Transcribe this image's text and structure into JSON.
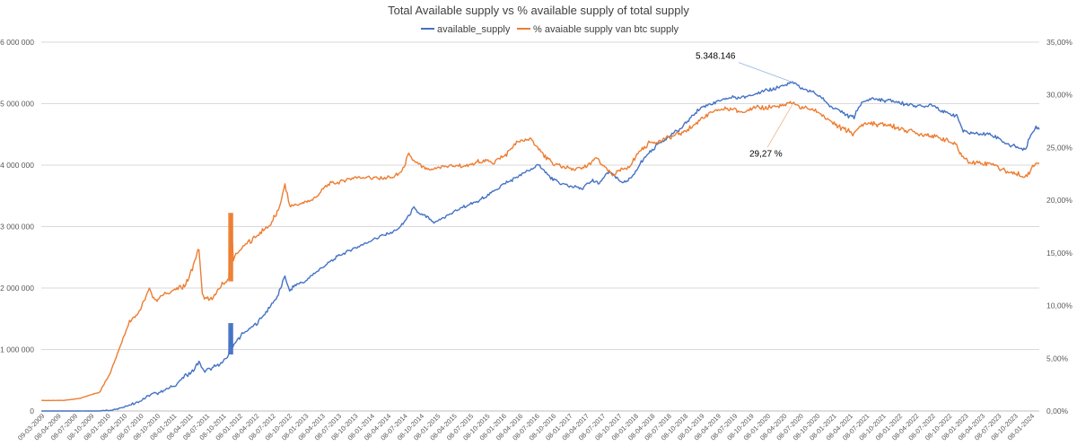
{
  "chart_data": {
    "type": "line",
    "title": "Total Available supply vs % available supply of total supply",
    "legend_position": "top-center",
    "grid": true,
    "series": [
      {
        "name": "available_supply",
        "color": "#4472c4",
        "axis": "left"
      },
      {
        "name": "% avaiable supply van btc supply",
        "color": "#ed7d31",
        "axis": "right"
      }
    ],
    "y_left": {
      "ylim": [
        0,
        6000000
      ],
      "ticks": [
        "0",
        "1 000 000",
        "2 000 000",
        "3 000 000",
        "4 000 000",
        "5 000 000",
        "6 000 000"
      ]
    },
    "y_right": {
      "ylim": [
        0,
        35
      ],
      "ticks": [
        "0,00%",
        "5,00%",
        "10,00%",
        "15,00%",
        "20,00%",
        "25,00%",
        "30,00%",
        "35,00%"
      ]
    },
    "x_start": 2009.167,
    "x_end": 2024.25,
    "x_tick_labels": [
      "09-03-2009",
      "08-04-2009",
      "08-07-2009",
      "08-10-2009",
      "08-01-2010",
      "08-04-2010",
      "08-07-2010",
      "08-10-2010",
      "08-01-2011",
      "08-04-2011",
      "08-07-2011",
      "08-10-2011",
      "08-01-2012",
      "08-04-2012",
      "08-07-2012",
      "08-10-2012",
      "08-01-2013",
      "08-04-2013",
      "08-07-2013",
      "08-10-2013",
      "08-01-2014",
      "08-04-2014",
      "08-07-2014",
      "08-10-2014",
      "08-01-2015",
      "08-04-2015",
      "08-07-2015",
      "08-10-2015",
      "08-01-2016",
      "08-04-2016",
      "08-07-2016",
      "08-10-2016",
      "08-01-2017",
      "08-04-2017",
      "08-07-2017",
      "08-10-2017",
      "08-01-2018",
      "08-04-2018",
      "08-07-2018",
      "08-10-2018",
      "08-01-2019",
      "08-04-2019",
      "08-07-2019",
      "08-10-2019",
      "08-01-2020",
      "08-04-2020",
      "08-07-2020",
      "08-10-2020",
      "08-01-2021",
      "08-04-2021",
      "08-07-2021",
      "08-10-2021",
      "08-01-2022",
      "08-04-2022",
      "08-07-2022",
      "08-10-2022",
      "08-01-2023",
      "08-04-2023",
      "08-07-2023",
      "08-10-2023",
      "08-01-2024"
    ],
    "available_supply_points": [
      [
        2009.17,
        0
      ],
      [
        2009.5,
        0
      ],
      [
        2009.8,
        0
      ],
      [
        2010.0,
        0
      ],
      [
        2010.2,
        10000
      ],
      [
        2010.4,
        60000
      ],
      [
        2010.6,
        140000
      ],
      [
        2010.8,
        250000
      ],
      [
        2011.0,
        330000
      ],
      [
        2011.2,
        420000
      ],
      [
        2011.35,
        580000
      ],
      [
        2011.45,
        640000
      ],
      [
        2011.55,
        800000
      ],
      [
        2011.62,
        650000
      ],
      [
        2011.75,
        700000
      ],
      [
        2011.9,
        780000
      ],
      [
        2012.0,
        900000
      ],
      [
        2012.03,
        1400000
      ],
      [
        2012.06,
        1050000
      ],
      [
        2012.2,
        1250000
      ],
      [
        2012.4,
        1400000
      ],
      [
        2012.6,
        1650000
      ],
      [
        2012.75,
        1900000
      ],
      [
        2012.85,
        2200000
      ],
      [
        2012.92,
        1950000
      ],
      [
        2013.0,
        2050000
      ],
      [
        2013.15,
        2100000
      ],
      [
        2013.3,
        2250000
      ],
      [
        2013.5,
        2400000
      ],
      [
        2013.7,
        2550000
      ],
      [
        2013.9,
        2650000
      ],
      [
        2014.1,
        2750000
      ],
      [
        2014.3,
        2850000
      ],
      [
        2014.5,
        2920000
      ],
      [
        2014.6,
        3000000
      ],
      [
        2014.7,
        3150000
      ],
      [
        2014.8,
        3300000
      ],
      [
        2014.9,
        3200000
      ],
      [
        2015.0,
        3150000
      ],
      [
        2015.1,
        3050000
      ],
      [
        2015.25,
        3150000
      ],
      [
        2015.5,
        3300000
      ],
      [
        2015.75,
        3400000
      ],
      [
        2015.9,
        3500000
      ],
      [
        2016.0,
        3580000
      ],
      [
        2016.2,
        3720000
      ],
      [
        2016.35,
        3800000
      ],
      [
        2016.5,
        3900000
      ],
      [
        2016.7,
        4000000
      ],
      [
        2016.85,
        3800000
      ],
      [
        2017.0,
        3700000
      ],
      [
        2017.2,
        3650000
      ],
      [
        2017.35,
        3620000
      ],
      [
        2017.5,
        3750000
      ],
      [
        2017.6,
        3700000
      ],
      [
        2017.75,
        3900000
      ],
      [
        2017.9,
        3750000
      ],
      [
        2018.0,
        3720000
      ],
      [
        2018.1,
        3800000
      ],
      [
        2018.2,
        4000000
      ],
      [
        2018.35,
        4200000
      ],
      [
        2018.5,
        4350000
      ],
      [
        2018.7,
        4500000
      ],
      [
        2018.85,
        4600000
      ],
      [
        2019.0,
        4800000
      ],
      [
        2019.15,
        4950000
      ],
      [
        2019.3,
        5000000
      ],
      [
        2019.45,
        5050000
      ],
      [
        2019.6,
        5100000
      ],
      [
        2019.75,
        5100000
      ],
      [
        2019.9,
        5150000
      ],
      [
        2020.1,
        5200000
      ],
      [
        2020.25,
        5250000
      ],
      [
        2020.4,
        5300000
      ],
      [
        2020.52,
        5348146
      ],
      [
        2020.65,
        5250000
      ],
      [
        2020.8,
        5200000
      ],
      [
        2020.95,
        5100000
      ],
      [
        2021.1,
        4950000
      ],
      [
        2021.2,
        4900000
      ],
      [
        2021.35,
        4800000
      ],
      [
        2021.45,
        4780000
      ],
      [
        2021.55,
        5000000
      ],
      [
        2021.7,
        5080000
      ],
      [
        2021.85,
        5060000
      ],
      [
        2022.0,
        5050000
      ],
      [
        2022.2,
        5000000
      ],
      [
        2022.35,
        4980000
      ],
      [
        2022.5,
        4950000
      ],
      [
        2022.62,
        5000000
      ],
      [
        2022.75,
        4900000
      ],
      [
        2022.85,
        4850000
      ],
      [
        2023.0,
        4800000
      ],
      [
        2023.05,
        4700000
      ],
      [
        2023.1,
        4550000
      ],
      [
        2023.25,
        4520000
      ],
      [
        2023.5,
        4500000
      ],
      [
        2023.62,
        4450000
      ],
      [
        2023.75,
        4350000
      ],
      [
        2023.9,
        4300000
      ],
      [
        2024.0,
        4250000
      ],
      [
        2024.05,
        4270000
      ],
      [
        2024.12,
        4500000
      ],
      [
        2024.2,
        4620000
      ],
      [
        2024.25,
        4580000
      ]
    ],
    "percent_points": [
      [
        2009.17,
        1.0
      ],
      [
        2009.5,
        1.0
      ],
      [
        2009.75,
        1.2
      ],
      [
        2009.95,
        1.6
      ],
      [
        2010.05,
        1.8
      ],
      [
        2010.2,
        3.5
      ],
      [
        2010.35,
        6.0
      ],
      [
        2010.5,
        8.5
      ],
      [
        2010.65,
        9.5
      ],
      [
        2010.8,
        11.5
      ],
      [
        2010.9,
        10.5
      ],
      [
        2011.0,
        11.0
      ],
      [
        2011.2,
        11.5
      ],
      [
        2011.35,
        12.0
      ],
      [
        2011.45,
        13.5
      ],
      [
        2011.55,
        15.5
      ],
      [
        2011.6,
        11.0
      ],
      [
        2011.7,
        10.5
      ],
      [
        2011.8,
        11.0
      ],
      [
        2011.9,
        12.0
      ],
      [
        2012.0,
        12.5
      ],
      [
        2012.03,
        18.5
      ],
      [
        2012.07,
        14.5
      ],
      [
        2012.2,
        15.5
      ],
      [
        2012.4,
        16.5
      ],
      [
        2012.6,
        17.5
      ],
      [
        2012.75,
        19.0
      ],
      [
        2012.85,
        21.5
      ],
      [
        2012.92,
        19.5
      ],
      [
        2013.0,
        19.5
      ],
      [
        2013.15,
        19.8
      ],
      [
        2013.3,
        20.2
      ],
      [
        2013.5,
        21.5
      ],
      [
        2013.7,
        21.8
      ],
      [
        2013.9,
        22.2
      ],
      [
        2014.1,
        22.2
      ],
      [
        2014.3,
        22.1
      ],
      [
        2014.5,
        22.2
      ],
      [
        2014.62,
        22.8
      ],
      [
        2014.72,
        24.3
      ],
      [
        2014.85,
        23.5
      ],
      [
        2014.95,
        23.0
      ],
      [
        2015.05,
        22.8
      ],
      [
        2015.2,
        23.2
      ],
      [
        2015.4,
        23.3
      ],
      [
        2015.6,
        23.2
      ],
      [
        2015.75,
        23.6
      ],
      [
        2015.9,
        23.8
      ],
      [
        2016.0,
        23.6
      ],
      [
        2016.1,
        24.0
      ],
      [
        2016.2,
        24.4
      ],
      [
        2016.35,
        25.5
      ],
      [
        2016.5,
        25.8
      ],
      [
        2016.6,
        25.6
      ],
      [
        2016.75,
        24.3
      ],
      [
        2016.9,
        23.4
      ],
      [
        2017.0,
        23.3
      ],
      [
        2017.15,
        23.0
      ],
      [
        2017.3,
        22.9
      ],
      [
        2017.45,
        23.4
      ],
      [
        2017.55,
        24.0
      ],
      [
        2017.7,
        23.0
      ],
      [
        2017.8,
        22.4
      ],
      [
        2017.9,
        22.8
      ],
      [
        2018.0,
        22.9
      ],
      [
        2018.1,
        23.6
      ],
      [
        2018.2,
        24.6
      ],
      [
        2018.35,
        25.4
      ],
      [
        2018.5,
        25.6
      ],
      [
        2018.7,
        26.0
      ],
      [
        2018.85,
        26.4
      ],
      [
        2019.0,
        27.0
      ],
      [
        2019.15,
        27.8
      ],
      [
        2019.3,
        28.3
      ],
      [
        2019.45,
        28.6
      ],
      [
        2019.6,
        28.7
      ],
      [
        2019.75,
        28.4
      ],
      [
        2019.9,
        28.7
      ],
      [
        2020.1,
        28.8
      ],
      [
        2020.25,
        28.9
      ],
      [
        2020.4,
        29.0
      ],
      [
        2020.52,
        29.27
      ],
      [
        2020.65,
        28.8
      ],
      [
        2020.8,
        28.6
      ],
      [
        2020.95,
        28.2
      ],
      [
        2021.1,
        27.4
      ],
      [
        2021.2,
        27.0
      ],
      [
        2021.35,
        26.6
      ],
      [
        2021.45,
        26.3
      ],
      [
        2021.55,
        27.1
      ],
      [
        2021.7,
        27.3
      ],
      [
        2021.85,
        27.2
      ],
      [
        2022.0,
        27.1
      ],
      [
        2022.15,
        26.8
      ],
      [
        2022.3,
        26.6
      ],
      [
        2022.45,
        26.3
      ],
      [
        2022.6,
        26.2
      ],
      [
        2022.75,
        25.9
      ],
      [
        2022.9,
        25.6
      ],
      [
        2023.0,
        25.2
      ],
      [
        2023.08,
        24.2
      ],
      [
        2023.2,
        23.6
      ],
      [
        2023.4,
        23.5
      ],
      [
        2023.55,
        23.5
      ],
      [
        2023.62,
        23.2
      ],
      [
        2023.75,
        22.7
      ],
      [
        2023.9,
        22.5
      ],
      [
        2024.0,
        22.3
      ],
      [
        2024.05,
        22.3
      ],
      [
        2024.1,
        22.6
      ],
      [
        2024.15,
        23.3
      ],
      [
        2024.2,
        23.6
      ],
      [
        2024.25,
        23.5
      ]
    ],
    "annotations": [
      {
        "text": "5.348.146",
        "series": "available_supply",
        "x": 2020.52,
        "y": 5348146
      },
      {
        "text": "29,27 %",
        "series": "% avaiable supply van btc supply",
        "x": 2020.52,
        "y": 29.27
      }
    ]
  }
}
